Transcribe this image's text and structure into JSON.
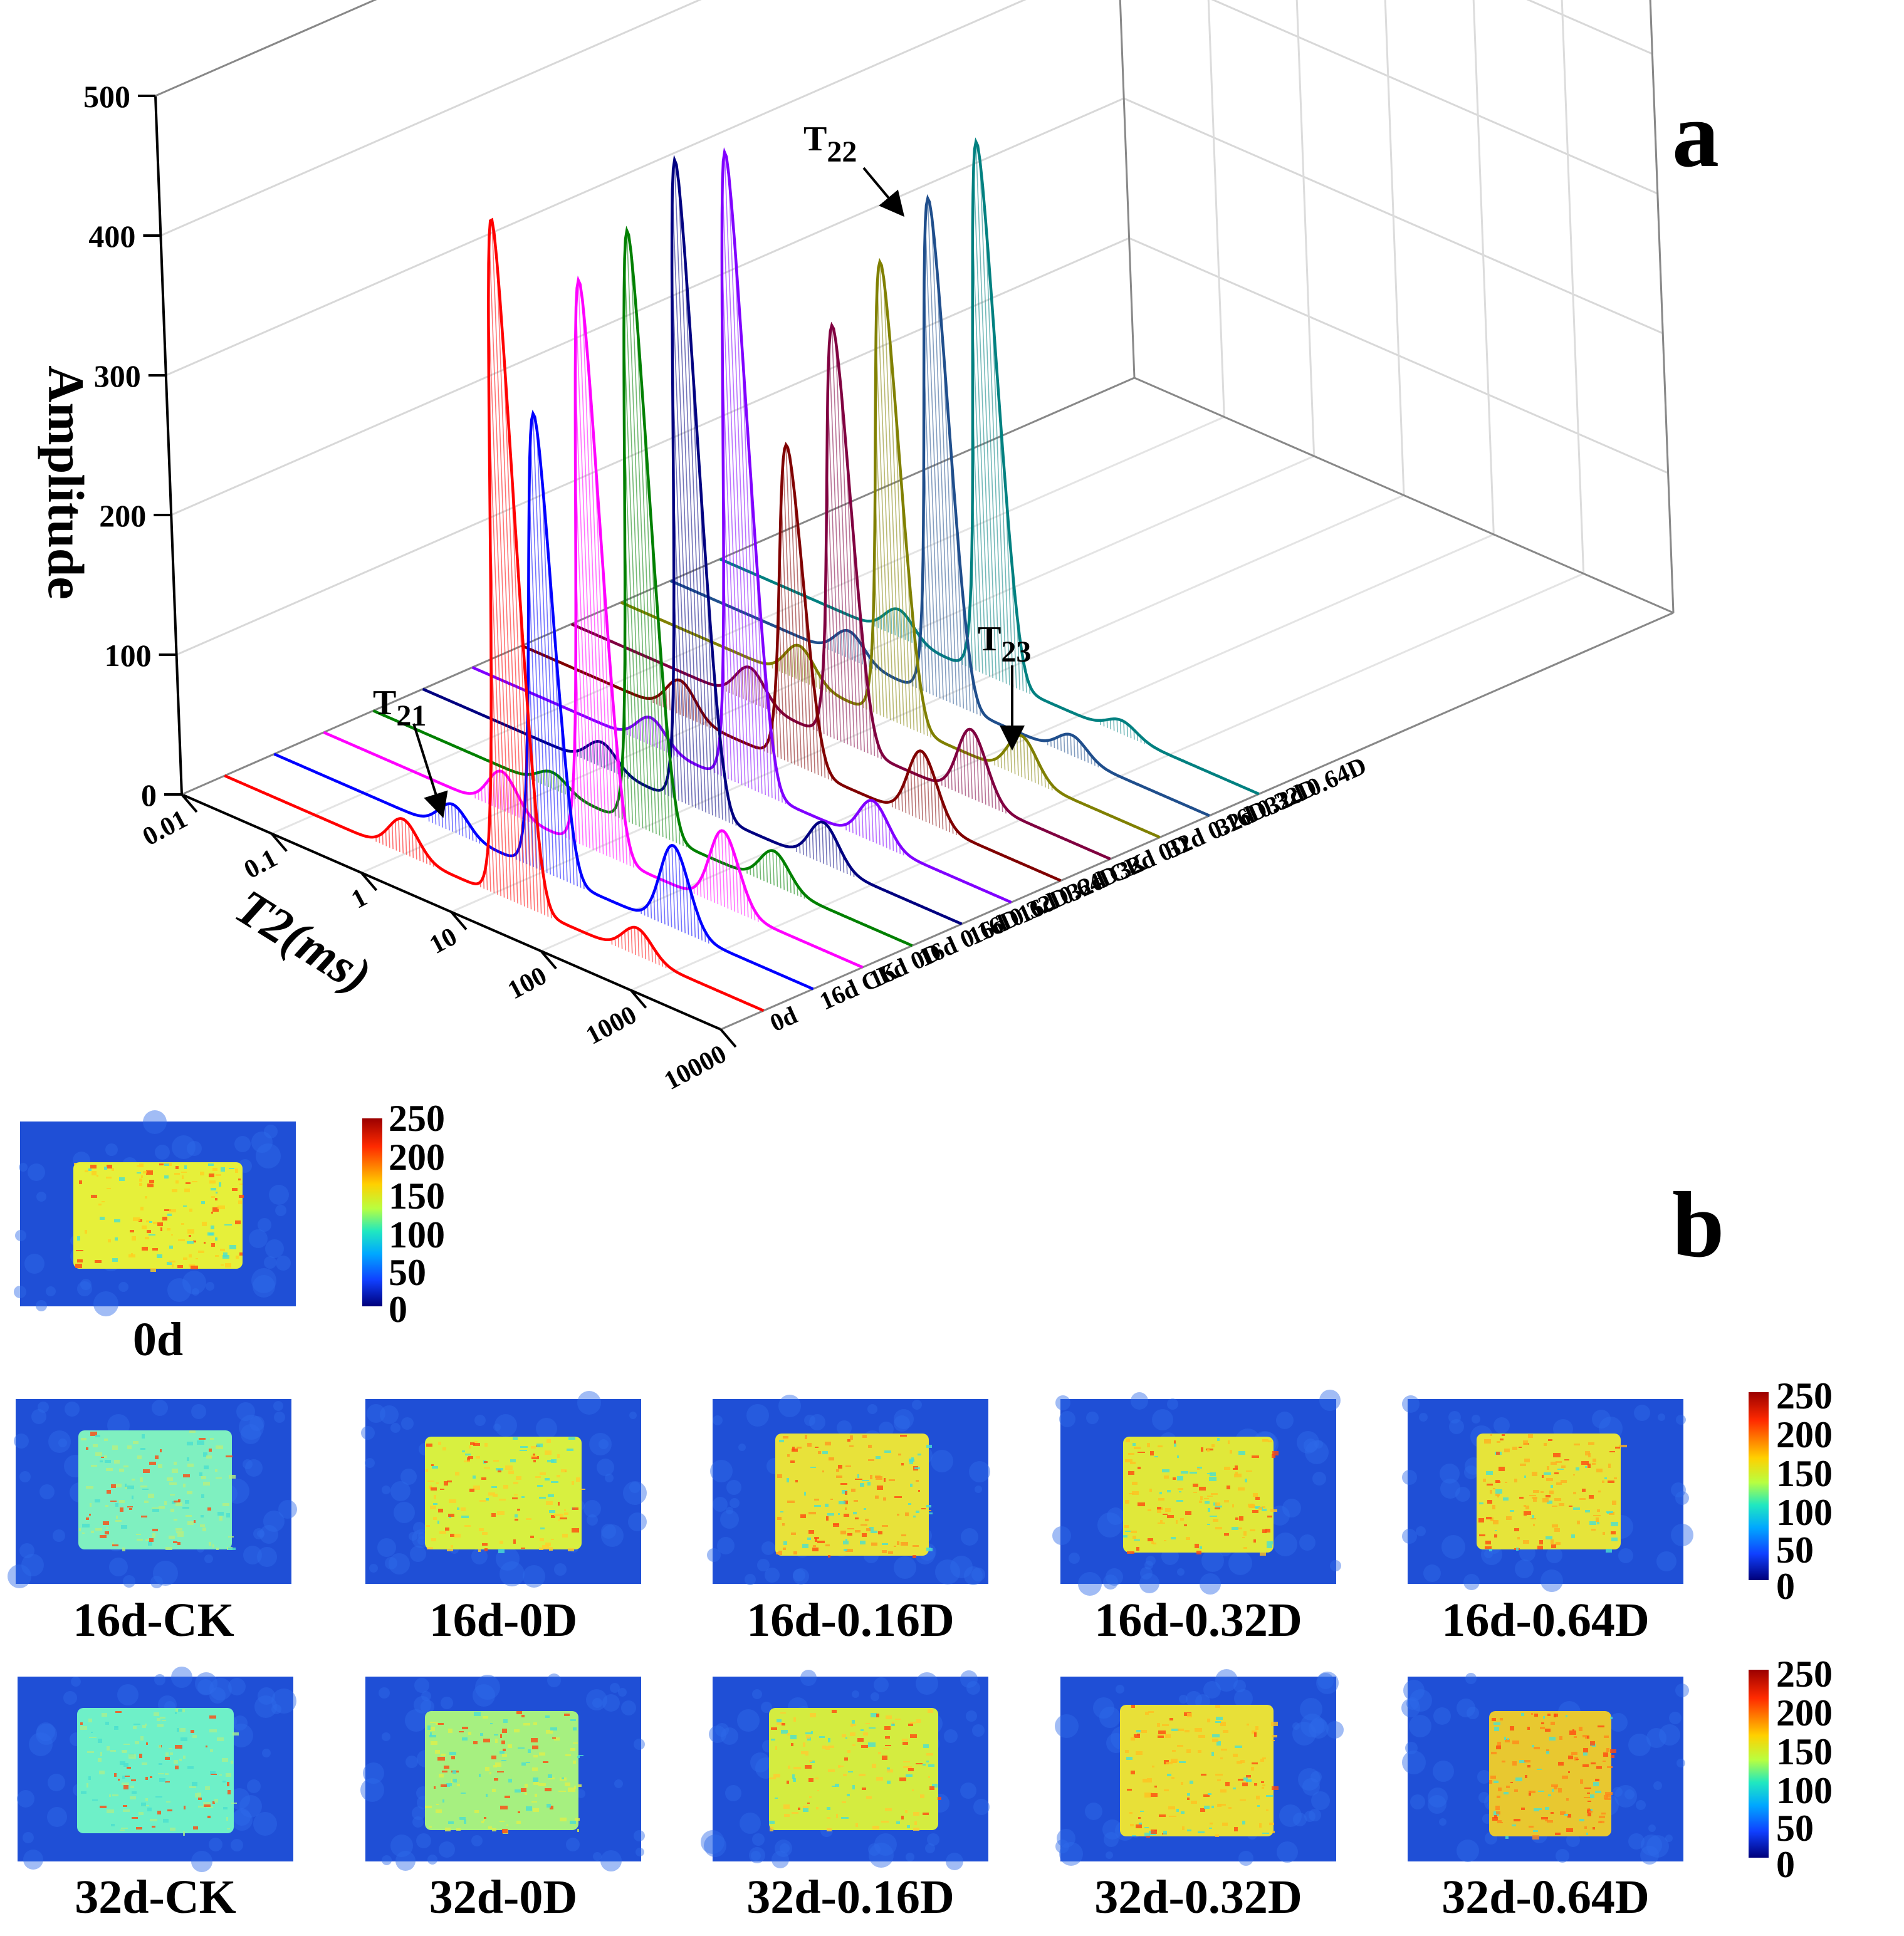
{
  "chart_data": {
    "type": "line",
    "style": "3d-waterfall",
    "panel_label": "a",
    "zlabel": "Amplitude",
    "xlabel": "T2(ms)",
    "xscale": "log",
    "xlim": [
      0.01,
      10000
    ],
    "zlim": [
      0,
      500
    ],
    "x_ticks": [
      "0.01",
      "0.1",
      "1",
      "10",
      "100",
      "1000",
      "10000"
    ],
    "z_ticks": [
      "0",
      "100",
      "200",
      "300",
      "400",
      "500"
    ],
    "series": [
      {
        "name": "0d",
        "color": "#ff0000",
        "peaks": [
          {
            "t2": 1,
            "amp": 25
          },
          {
            "t2": 18,
            "amp": 490
          },
          {
            "t2": 400,
            "amp": 20
          }
        ]
      },
      {
        "name": "16d CK",
        "color": "#0000ff",
        "peaks": [
          {
            "t2": 1,
            "amp": 20
          },
          {
            "t2": 12,
            "amp": 330
          },
          {
            "t2": 300,
            "amp": 60
          }
        ]
      },
      {
        "name": "16d 0D",
        "color": "#ff00ff",
        "peaks": [
          {
            "t2": 1,
            "amp": 28
          },
          {
            "t2": 12,
            "amp": 410
          },
          {
            "t2": 300,
            "amp": 55
          }
        ]
      },
      {
        "name": "16d 0.16D",
        "color": "#008000",
        "peaks": [
          {
            "t2": 1,
            "amp": 12
          },
          {
            "t2": 12,
            "amp": 430
          },
          {
            "t2": 300,
            "amp": 25
          }
        ]
      },
      {
        "name": "16d 0.32D",
        "color": "#000080",
        "peaks": [
          {
            "t2": 1,
            "amp": 18
          },
          {
            "t2": 12,
            "amp": 465
          },
          {
            "t2": 300,
            "amp": 30
          }
        ]
      },
      {
        "name": "16d 0.64D",
        "color": "#8000ff",
        "peaks": [
          {
            "t2": 1,
            "amp": 20
          },
          {
            "t2": 12,
            "amp": 455
          },
          {
            "t2": 300,
            "amp": 30
          }
        ]
      },
      {
        "name": "32d CK",
        "color": "#800000",
        "peaks": [
          {
            "t2": 0.6,
            "amp": 25
          },
          {
            "t2": 12,
            "amp": 230
          },
          {
            "t2": 300,
            "amp": 50
          }
        ]
      },
      {
        "name": "32d 0D",
        "color": "#800040",
        "peaks": [
          {
            "t2": 1,
            "amp": 25
          },
          {
            "t2": 12,
            "amp": 300
          },
          {
            "t2": 300,
            "amp": 50
          }
        ]
      },
      {
        "name": "32d 0.16D",
        "color": "#808000",
        "peaks": [
          {
            "t2": 1,
            "amp": 25
          },
          {
            "t2": 12,
            "amp": 330
          },
          {
            "t2": 300,
            "amp": 30
          }
        ]
      },
      {
        "name": "32d 0.32D",
        "color": "#1f4e8c",
        "peaks": [
          {
            "t2": 1,
            "amp": 20
          },
          {
            "t2": 12,
            "amp": 360
          },
          {
            "t2": 300,
            "amp": 15
          }
        ]
      },
      {
        "name": "32d 0.64D",
        "color": "#008080",
        "peaks": [
          {
            "t2": 1,
            "amp": 20
          },
          {
            "t2": 12,
            "amp": 385
          },
          {
            "t2": 300,
            "amp": 10
          }
        ]
      }
    ],
    "annotations": [
      {
        "label": "T",
        "sub": "21"
      },
      {
        "label": "T",
        "sub": "22"
      },
      {
        "label": "T",
        "sub": "23"
      }
    ]
  },
  "panel_b": {
    "panel_label": "b",
    "colorbar_ticks": [
      "250",
      "200",
      "150",
      "100",
      "50",
      "0"
    ],
    "top_image": {
      "caption": "0d"
    },
    "rows": [
      {
        "captions": [
          "16d-CK",
          "16d-0D",
          "16d-0.16D",
          "16d-0.32D",
          "16d-0.64D"
        ]
      },
      {
        "captions": [
          "32d-CK",
          "32d-0D",
          "32d-0.16D",
          "32d-0.32D",
          "32d-0.64D"
        ]
      }
    ]
  }
}
